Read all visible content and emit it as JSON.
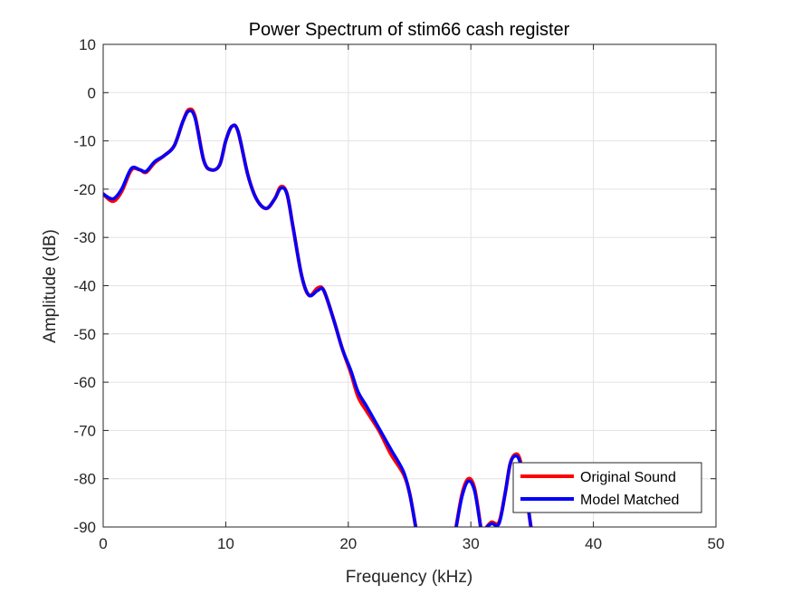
{
  "chart_data": {
    "type": "line",
    "title": "Power Spectrum of stim66 cash register",
    "xlabel": "Frequency (kHz)",
    "ylabel": "Amplitude (dB)",
    "xlim": [
      0,
      50
    ],
    "ylim": [
      -90,
      10
    ],
    "xticks": [
      "0",
      "10",
      "20",
      "30",
      "40",
      "50"
    ],
    "yticks": [
      "10",
      "0",
      "-10",
      "-20",
      "-30",
      "-40",
      "-50",
      "-60",
      "-70",
      "-80",
      "-90"
    ],
    "grid": true,
    "legend_position": "bottom-right",
    "series": [
      {
        "name": "Original Sound",
        "color": "#ff0000",
        "segments": [
          [
            [
              0,
              -21
            ],
            [
              0.8,
              -22.5
            ],
            [
              1.5,
              -20.5
            ],
            [
              2.3,
              -16
            ],
            [
              3.0,
              -16
            ],
            [
              3.5,
              -16.5
            ],
            [
              4.2,
              -14.5
            ],
            [
              5.0,
              -13
            ],
            [
              5.8,
              -11
            ],
            [
              6.5,
              -6
            ],
            [
              7.0,
              -3.5
            ],
            [
              7.5,
              -5
            ],
            [
              8.2,
              -14
            ],
            [
              8.8,
              -16
            ],
            [
              9.5,
              -15
            ],
            [
              10.0,
              -10
            ],
            [
              10.5,
              -7
            ],
            [
              11.0,
              -8
            ],
            [
              11.8,
              -17
            ],
            [
              12.5,
              -22
            ],
            [
              13.3,
              -24
            ],
            [
              14.0,
              -22
            ],
            [
              14.5,
              -19.5
            ],
            [
              15.0,
              -21
            ],
            [
              15.5,
              -28
            ],
            [
              16.2,
              -38
            ],
            [
              16.8,
              -42
            ],
            [
              17.5,
              -40.5
            ],
            [
              18.0,
              -41
            ],
            [
              18.8,
              -47
            ],
            [
              19.5,
              -53
            ],
            [
              20.2,
              -58
            ],
            [
              20.8,
              -63
            ],
            [
              21.5,
              -66
            ],
            [
              22.5,
              -70
            ],
            [
              23.5,
              -75
            ],
            [
              24.5,
              -79
            ],
            [
              25.0,
              -83
            ],
            [
              25.5,
              -90
            ]
          ],
          [
            [
              28.8,
              -90
            ],
            [
              29.3,
              -83
            ],
            [
              29.8,
              -80
            ],
            [
              30.3,
              -82
            ],
            [
              30.8,
              -90
            ]
          ],
          [
            [
              31.3,
              -90
            ],
            [
              31.7,
              -89
            ],
            [
              32.3,
              -89
            ],
            [
              32.8,
              -83
            ],
            [
              33.2,
              -77
            ],
            [
              33.6,
              -75
            ],
            [
              34.0,
              -76
            ],
            [
              34.5,
              -83
            ],
            [
              34.9,
              -90
            ]
          ]
        ]
      },
      {
        "name": "Model Matched",
        "color": "#0000ff",
        "segments": [
          [
            [
              0,
              -21
            ],
            [
              0.8,
              -22
            ],
            [
              1.5,
              -20
            ],
            [
              2.3,
              -15.7
            ],
            [
              3.0,
              -16
            ],
            [
              3.5,
              -16.3
            ],
            [
              4.2,
              -14.3
            ],
            [
              5.0,
              -13
            ],
            [
              5.8,
              -11
            ],
            [
              6.5,
              -6
            ],
            [
              7.0,
              -3.8
            ],
            [
              7.5,
              -5.3
            ],
            [
              8.2,
              -14
            ],
            [
              8.8,
              -16
            ],
            [
              9.5,
              -15
            ],
            [
              10.0,
              -10
            ],
            [
              10.5,
              -7
            ],
            [
              11.0,
              -8
            ],
            [
              11.8,
              -17
            ],
            [
              12.5,
              -22
            ],
            [
              13.3,
              -24
            ],
            [
              14.0,
              -22
            ],
            [
              14.5,
              -19.8
            ],
            [
              15.0,
              -21
            ],
            [
              15.5,
              -28
            ],
            [
              16.2,
              -38
            ],
            [
              16.8,
              -42
            ],
            [
              17.5,
              -41
            ],
            [
              18.0,
              -41
            ],
            [
              18.8,
              -47
            ],
            [
              19.5,
              -53
            ],
            [
              20.2,
              -57.5
            ],
            [
              20.8,
              -62
            ],
            [
              21.5,
              -65
            ],
            [
              22.5,
              -69.5
            ],
            [
              23.5,
              -74
            ],
            [
              24.5,
              -78.5
            ],
            [
              25.0,
              -83
            ],
            [
              25.5,
              -90
            ]
          ],
          [
            [
              28.8,
              -90
            ],
            [
              29.3,
              -83.5
            ],
            [
              29.8,
              -80.5
            ],
            [
              30.3,
              -82.5
            ],
            [
              30.8,
              -90
            ]
          ],
          [
            [
              31.3,
              -90
            ],
            [
              31.7,
              -89.3
            ],
            [
              32.3,
              -89.3
            ],
            [
              32.8,
              -83
            ],
            [
              33.2,
              -77
            ],
            [
              33.6,
              -75.3
            ],
            [
              34.0,
              -76.5
            ],
            [
              34.5,
              -83
            ],
            [
              34.9,
              -90
            ]
          ]
        ]
      }
    ]
  }
}
